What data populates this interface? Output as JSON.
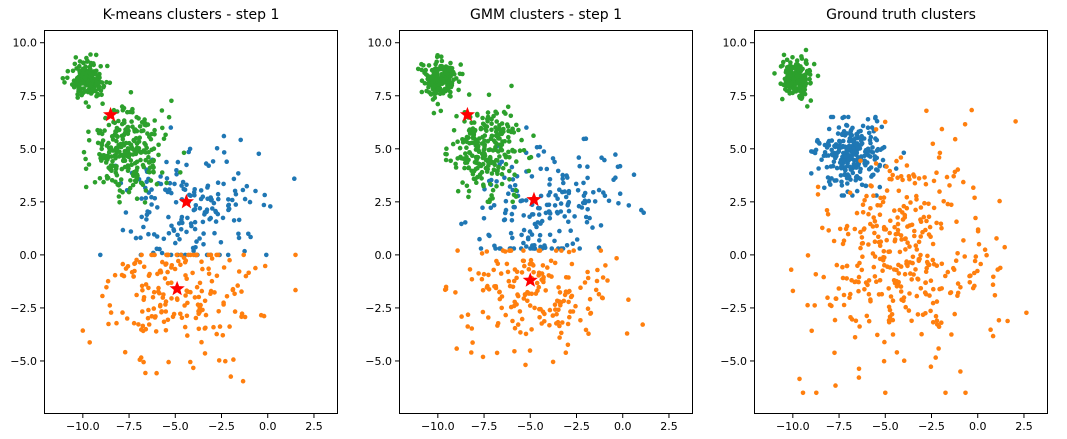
{
  "chart_data": [
    {
      "type": "scatter",
      "title": "K-means clusters - step 1",
      "xlabel": "",
      "ylabel": "",
      "xlim": [
        -12.1,
        3.8
      ],
      "ylim": [
        -7.5,
        10.6
      ],
      "xticks": [
        "−10.0",
        "−7.5",
        "−5.0",
        "−2.5",
        "0.0",
        "2.5"
      ],
      "yticks": [
        "−5.0",
        "−2.5",
        "0.0",
        "2.5",
        "5.0",
        "7.5",
        "10.0"
      ],
      "grid": false,
      "series": [
        {
          "color": "#1f77b4",
          "center": [
            -4.2,
            2.2
          ],
          "spread": [
            1.9,
            1.6
          ],
          "n": 180,
          "xrange": [
            -11.0,
            3.2
          ],
          "yrange": [
            0.0,
            6.0
          ]
        },
        {
          "color": "#ff7f0e",
          "center": [
            -4.8,
            -1.8
          ],
          "spread": [
            2.2,
            1.5
          ],
          "n": 200,
          "xrange": [
            -10.0,
            1.5
          ],
          "yrange": [
            -6.5,
            0.0
          ]
        },
        {
          "color": "#2ca02c",
          "center": [
            -7.6,
            4.9
          ],
          "spread": [
            1.0,
            1.0
          ],
          "n": 260,
          "xrange": [
            -11.5,
            -4.0
          ],
          "yrange": [
            2.0,
            8.5
          ]
        },
        {
          "color": "#2ca02c",
          "center": [
            -9.8,
            8.3
          ],
          "spread": [
            0.45,
            0.45
          ],
          "n": 170,
          "xrange": [
            -11.2,
            -8.2
          ],
          "yrange": [
            7.0,
            10.0
          ]
        }
      ],
      "centroids": {
        "color": "#ff0000",
        "points": [
          [
            -8.5,
            6.6
          ],
          [
            -4.4,
            2.5
          ],
          [
            -4.9,
            -1.6
          ]
        ]
      }
    },
    {
      "type": "scatter",
      "title": "GMM clusters - step 1",
      "xlabel": "",
      "ylabel": "",
      "xlim": [
        -12.1,
        3.8
      ],
      "ylim": [
        -7.5,
        10.6
      ],
      "xticks": [
        "−10.0",
        "−7.5",
        "−5.0",
        "−2.5",
        "0.0",
        "2.5"
      ],
      "yticks": [
        "−5.0",
        "−2.5",
        "0.0",
        "2.5",
        "5.0",
        "7.5",
        "10.0"
      ],
      "grid": false,
      "series": [
        {
          "color": "#1f77b4",
          "center": [
            -4.3,
            2.3
          ],
          "spread": [
            2.0,
            1.5
          ],
          "n": 190,
          "xrange": [
            -11.5,
            3.2
          ],
          "yrange": [
            0.3,
            6.0
          ]
        },
        {
          "color": "#ff7f0e",
          "center": [
            -4.8,
            -1.9
          ],
          "spread": [
            2.2,
            1.5
          ],
          "n": 190,
          "xrange": [
            -10.0,
            1.5
          ],
          "yrange": [
            -6.5,
            0.2
          ]
        },
        {
          "color": "#2ca02c",
          "center": [
            -7.4,
            4.9
          ],
          "spread": [
            1.0,
            1.0
          ],
          "n": 250,
          "xrange": [
            -11.0,
            -4.0
          ],
          "yrange": [
            2.5,
            8.5
          ]
        },
        {
          "color": "#2ca02c",
          "center": [
            -9.8,
            8.3
          ],
          "spread": [
            0.45,
            0.45
          ],
          "n": 170,
          "xrange": [
            -11.2,
            -8.2
          ],
          "yrange": [
            7.0,
            10.0
          ]
        }
      ],
      "centroids": {
        "color": "#ff0000",
        "points": [
          [
            -8.4,
            6.6
          ],
          [
            -4.8,
            2.6
          ],
          [
            -5.0,
            -1.2
          ]
        ]
      }
    },
    {
      "type": "scatter",
      "title": "Ground truth clusters",
      "xlabel": "",
      "ylabel": "",
      "xlim": [
        -12.1,
        3.8
      ],
      "ylim": [
        -7.5,
        10.6
      ],
      "xticks": [
        "−10.0",
        "−7.5",
        "−5.0",
        "−2.5",
        "0.0",
        "2.5"
      ],
      "yticks": [
        "−5.0",
        "−2.5",
        "0.0",
        "2.5",
        "5.0",
        "7.5",
        "10.0"
      ],
      "grid": false,
      "series": [
        {
          "color": "#1f77b4",
          "center": [
            -6.8,
            4.8
          ],
          "spread": [
            0.9,
            0.8
          ],
          "n": 260,
          "xrange": [
            -9.0,
            -4.0
          ],
          "yrange": [
            2.8,
            6.5
          ]
        },
        {
          "color": "#ff7f0e",
          "center": [
            -4.2,
            -0.2
          ],
          "spread": [
            2.4,
            2.6
          ],
          "n": 380,
          "xrange": [
            -11.5,
            3.2
          ],
          "yrange": [
            -6.5,
            8.3
          ]
        },
        {
          "color": "#2ca02c",
          "center": [
            -9.8,
            8.3
          ],
          "spread": [
            0.45,
            0.45
          ],
          "n": 170,
          "xrange": [
            -11.2,
            -8.2
          ],
          "yrange": [
            7.0,
            10.0
          ]
        }
      ]
    }
  ]
}
